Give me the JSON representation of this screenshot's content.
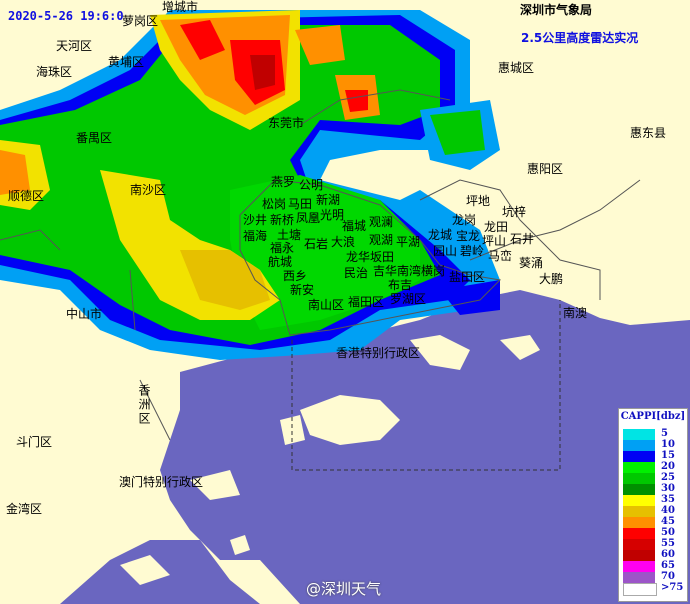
{
  "header": {
    "timestamp": "2020-5-26 19:6:0",
    "agency": "深圳市气象局",
    "product": "2.5公里高度雷达实况"
  },
  "colors": {
    "land": "#fffbd2",
    "sea": "#6a66c0"
  },
  "labels": {
    "zengcheng": "增城市",
    "luogang": "萝岗区",
    "tianhe": "天河区",
    "haizhu": "海珠区",
    "huangpu": "黄埔区",
    "panyu": "番禺区",
    "shunde": "顺德区",
    "nansha": "南沙区",
    "zhongshan": "中山市",
    "dongguan": "东莞市",
    "huicheng": "惠城区",
    "huidong": "惠东县",
    "huiyang": "惠阳区",
    "yanluo": "燕罗",
    "gongming": "公明",
    "xinhu": "新湖",
    "songgang": "松岗",
    "matian": "马田",
    "guangming": "光明",
    "shajing": "沙井",
    "xinqiao": "新桥",
    "fenghuang": "凤凰",
    "fucheng": "福城",
    "guanlan": "观澜",
    "fuhai": "福海",
    "tiantang": "土塘",
    "shiyan": "石岩",
    "dalang": "大浪",
    "guanhu": "观湖",
    "pinghu": "平湖",
    "fuyong": "福永",
    "longhua_bantian": "龙华坂田",
    "hangcheng": "航城",
    "xixiang": "西乡",
    "minzhi": "民治",
    "jihua_nanwan_henggang": "吉华南湾横岗",
    "buji": "布吉",
    "luohu": "罗湖区",
    "xinan": "新安",
    "nanshan": "南山区",
    "futian": "福田区",
    "yantian": "盐田区",
    "pingdi": "坪地",
    "kengzi": "坑梓",
    "longgang": "龙岗",
    "longtian": "龙田",
    "longcheng": "龙城",
    "baolong": "宝龙",
    "pingshan": "坪山",
    "shijing": "石井",
    "yuanshan": "园山",
    "biling": "碧岭",
    "mawan": "马峦",
    "kuiyong": "葵涌",
    "dapeng": "大鹏",
    "nanao": "南澳",
    "hongkong": "香港特别行政区",
    "xiangzhou": "香洲区",
    "doumen": "斗门区",
    "jinwan": "金湾区",
    "macau": "澳门特别行政区"
  },
  "legend": {
    "title": "CAPPI[dbz]",
    "items": [
      {
        "label": "5",
        "color": "#00e4e4"
      },
      {
        "label": "10",
        "color": "#00a0f4"
      },
      {
        "label": "15",
        "color": "#0000f4"
      },
      {
        "label": "20",
        "color": "#00f000"
      },
      {
        "label": "25",
        "color": "#00c800"
      },
      {
        "label": "30",
        "color": "#009000"
      },
      {
        "label": "35",
        "color": "#ffff00"
      },
      {
        "label": "40",
        "color": "#e6c000"
      },
      {
        "label": "45",
        "color": "#ff9000"
      },
      {
        "label": "50",
        "color": "#ff0000"
      },
      {
        "label": "55",
        "color": "#d60000"
      },
      {
        "label": "60",
        "color": "#c00000"
      },
      {
        "label": "65",
        "color": "#ff00f0"
      },
      {
        "label": "70",
        "color": "#9c55c8"
      },
      {
        "label": ">75",
        "color": "#ffffff"
      }
    ]
  },
  "watermark": "@深圳天气"
}
